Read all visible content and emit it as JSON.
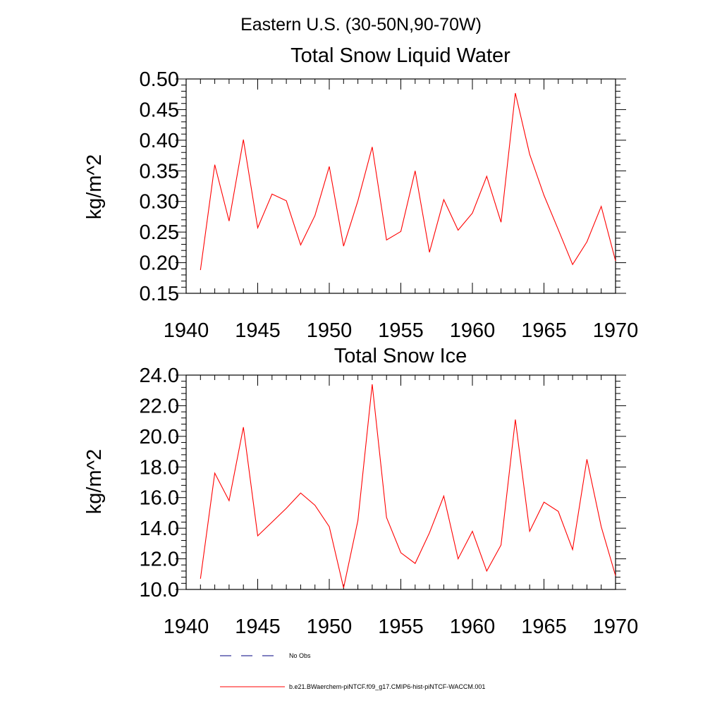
{
  "figure": {
    "suptitle": "Eastern U.S. (30-50N,90-70W)",
    "legend": [
      {
        "label": "No Obs",
        "color": "#000080",
        "style": "dashed"
      },
      {
        "label": "b.e21.BWaerchem-piNTCF.f09_g17.CMIP6-hist-piNTCF-WACCM.001",
        "color": "#ff0000",
        "style": "solid"
      }
    ]
  },
  "chart_data": [
    {
      "type": "line",
      "title": "Total Snow Liquid Water",
      "ylabel": "kg/m^2",
      "xlabel": "",
      "xlim": [
        1940,
        1970
      ],
      "ylim": [
        0.15,
        0.5
      ],
      "xticks": [
        "1940",
        "1945",
        "1950",
        "1955",
        "1960",
        "1965",
        "1970"
      ],
      "yticks": [
        "0.15",
        "0.20",
        "0.25",
        "0.30",
        "0.35",
        "0.40",
        "0.45",
        "0.50"
      ],
      "grid": false,
      "x": [
        1941,
        1942,
        1943,
        1944,
        1945,
        1946,
        1947,
        1948,
        1949,
        1950,
        1951,
        1952,
        1953,
        1954,
        1955,
        1956,
        1957,
        1958,
        1959,
        1960,
        1961,
        1962,
        1963,
        1964,
        1965,
        1966,
        1967,
        1968,
        1969,
        1970
      ],
      "series": [
        {
          "color": "#ff0000",
          "values": [
            0.188,
            0.36,
            0.268,
            0.401,
            0.257,
            0.312,
            0.301,
            0.229,
            0.277,
            0.357,
            0.227,
            0.301,
            0.389,
            0.237,
            0.251,
            0.35,
            0.217,
            0.303,
            0.253,
            0.281,
            0.341,
            0.266,
            0.477,
            0.377,
            0.31,
            0.254,
            0.197,
            0.234,
            0.292,
            0.203
          ]
        }
      ]
    },
    {
      "type": "line",
      "title": "Total Snow Ice",
      "ylabel": "kg/m^2",
      "xlabel": "",
      "xlim": [
        1940,
        1970
      ],
      "ylim": [
        10.0,
        24.0
      ],
      "xticks": [
        "1940",
        "1945",
        "1950",
        "1955",
        "1960",
        "1965",
        "1970"
      ],
      "yticks": [
        "10.0",
        "12.0",
        "14.0",
        "16.0",
        "18.0",
        "20.0",
        "22.0",
        "24.0"
      ],
      "grid": false,
      "x": [
        1941,
        1942,
        1943,
        1944,
        1945,
        1946,
        1947,
        1948,
        1949,
        1950,
        1951,
        1952,
        1953,
        1954,
        1955,
        1956,
        1957,
        1958,
        1959,
        1960,
        1961,
        1962,
        1963,
        1964,
        1965,
        1966,
        1967,
        1968,
        1969,
        1970
      ],
      "series": [
        {
          "color": "#ff0000",
          "values": [
            10.7,
            17.6,
            15.8,
            20.6,
            13.5,
            14.4,
            15.3,
            16.3,
            15.5,
            14.1,
            10.1,
            14.5,
            23.4,
            14.7,
            12.4,
            11.7,
            13.7,
            16.1,
            12.0,
            13.8,
            11.2,
            12.9,
            21.1,
            13.8,
            15.7,
            15.1,
            12.6,
            18.5,
            14.1,
            10.9
          ]
        }
      ]
    }
  ]
}
